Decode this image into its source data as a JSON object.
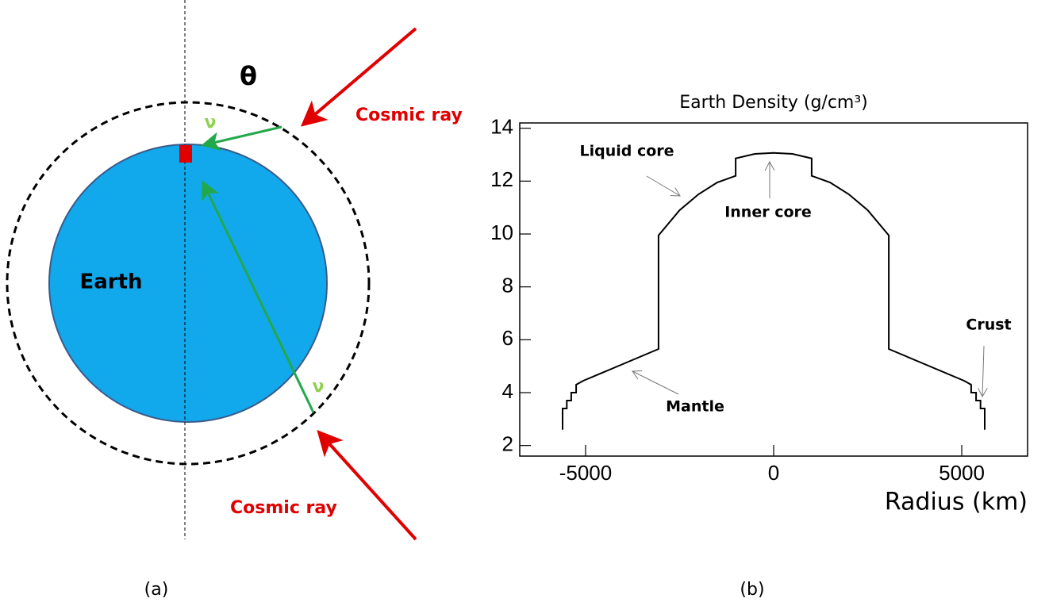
{
  "diagram": {
    "theta": "θ",
    "cosmic_ray_top": "Cosmic ray",
    "cosmic_ray_bottom": "Cosmic ray",
    "nu_top": "ν",
    "nu_bottom": "ν",
    "earth": "Earth",
    "label": "(a)"
  },
  "chart_data": {
    "type": "line",
    "title": "Earth Density (g/cm³)",
    "x_label": "Radius (km)",
    "panel_label": "(b)",
    "color": "#000000",
    "x": [
      -5610,
      -5610,
      -5500,
      -5500,
      -5380,
      -5380,
      -5250,
      -5250,
      -5060,
      -3060,
      -3060,
      -2500,
      -2000,
      -1500,
      -1010,
      -1010,
      -500,
      0,
      500,
      1010,
      1010,
      1500,
      2000,
      2500,
      3060,
      3060,
      5060,
      5250,
      5250,
      5380,
      5380,
      5500,
      5500,
      5610,
      5610
    ],
    "values": [
      2.6,
      3.4,
      3.4,
      3.7,
      3.7,
      4.0,
      4.0,
      4.3,
      4.45,
      5.65,
      9.95,
      10.9,
      11.5,
      11.95,
      12.2,
      12.86,
      13.03,
      13.07,
      13.03,
      12.86,
      12.2,
      11.95,
      11.5,
      10.9,
      9.95,
      5.65,
      4.45,
      4.3,
      4.0,
      4.0,
      3.7,
      3.7,
      3.4,
      3.4,
      2.6
    ],
    "xlim": [
      -6750,
      6750
    ],
    "ylim": [
      1.6,
      14.2
    ],
    "xticks": [
      -5000,
      0,
      5000
    ],
    "yticks": [
      2,
      4,
      6,
      8,
      10,
      12,
      14
    ],
    "annotations": [
      "Liquid core",
      "Inner core",
      "Mantle",
      "Crust"
    ]
  }
}
